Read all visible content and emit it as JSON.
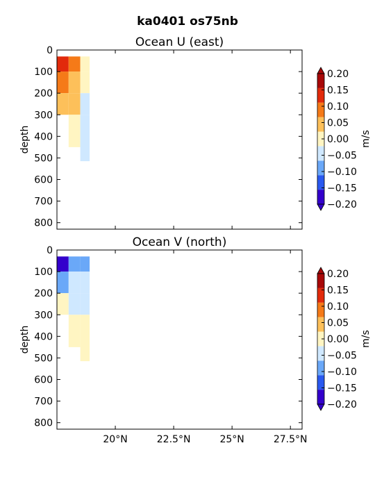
{
  "figure_title": "ka0401 os75nb",
  "chart_data": [
    {
      "type": "heatmap",
      "title": "Ocean U (east)",
      "ylabel": "depth",
      "y_ticks": [
        0,
        100,
        200,
        300,
        400,
        500,
        600,
        700,
        800
      ],
      "y_tick_labels": [
        "0",
        "100",
        "200",
        "300",
        "400",
        "500",
        "600",
        "700",
        "800"
      ],
      "ylim": [
        830,
        0
      ],
      "xlim": [
        17.5,
        28.0
      ],
      "x_ticks": [
        20,
        22.5,
        25,
        27.5
      ],
      "x_tick_labels": [],
      "colorbar": {
        "label": "m/s",
        "levels": [
          -0.2,
          -0.15,
          -0.1,
          -0.05,
          0.0,
          0.05,
          0.1,
          0.15,
          0.2
        ],
        "tick_labels": [
          "0.20",
          "0.15",
          "0.10",
          "0.05",
          "0.00",
          "−0.05",
          "−0.10",
          "−0.15",
          "−0.20"
        ],
        "colors": [
          "#3300cc",
          "#2a59f0",
          "#6aa8f8",
          "#cfe8ff",
          "#fff5c2",
          "#fdc05a",
          "#f57a18",
          "#e22a0b",
          "#a80808"
        ],
        "extend": "both"
      },
      "data_extent": {
        "lat_range": [
          17.5,
          18.9
        ],
        "depth_range": [
          30,
          515
        ]
      },
      "cells": [
        {
          "lat": [
            17.5,
            18.0
          ],
          "depth": [
            30,
            100
          ],
          "value": 0.18
        },
        {
          "lat": [
            18.0,
            18.5
          ],
          "depth": [
            30,
            100
          ],
          "value": 0.13
        },
        {
          "lat": [
            18.5,
            18.9
          ],
          "depth": [
            30,
            100
          ],
          "value": 0.03
        },
        {
          "lat": [
            17.5,
            18.0
          ],
          "depth": [
            100,
            200
          ],
          "value": 0.12
        },
        {
          "lat": [
            18.0,
            18.5
          ],
          "depth": [
            100,
            200
          ],
          "value": 0.08
        },
        {
          "lat": [
            18.5,
            18.9
          ],
          "depth": [
            100,
            200
          ],
          "value": 0.02
        },
        {
          "lat": [
            17.5,
            18.0
          ],
          "depth": [
            200,
            300
          ],
          "value": 0.07
        },
        {
          "lat": [
            18.0,
            18.5
          ],
          "depth": [
            200,
            300
          ],
          "value": 0.06
        },
        {
          "lat": [
            18.5,
            18.9
          ],
          "depth": [
            200,
            300
          ],
          "value": -0.02
        },
        {
          "lat": [
            18.0,
            18.5
          ],
          "depth": [
            300,
            450
          ],
          "value": 0.02
        },
        {
          "lat": [
            18.5,
            18.9
          ],
          "depth": [
            300,
            515
          ],
          "value": -0.03
        }
      ]
    },
    {
      "type": "heatmap",
      "title": "Ocean V (north)",
      "ylabel": "depth",
      "y_ticks": [
        0,
        100,
        200,
        300,
        400,
        500,
        600,
        700,
        800
      ],
      "y_tick_labels": [
        "0",
        "100",
        "200",
        "300",
        "400",
        "500",
        "600",
        "700",
        "800"
      ],
      "ylim": [
        830,
        0
      ],
      "xlim": [
        17.5,
        28.0
      ],
      "x_ticks": [
        20,
        22.5,
        25,
        27.5
      ],
      "x_tick_labels": [
        "20°N",
        "22.5°N",
        "25°N",
        "27.5°N"
      ],
      "colorbar": {
        "label": "m/s",
        "levels": [
          -0.2,
          -0.15,
          -0.1,
          -0.05,
          0.0,
          0.05,
          0.1,
          0.15,
          0.2
        ],
        "tick_labels": [
          "0.20",
          "0.15",
          "0.10",
          "0.05",
          "0.00",
          "−0.05",
          "−0.10",
          "−0.15",
          "−0.20"
        ],
        "colors": [
          "#3300cc",
          "#2a59f0",
          "#6aa8f8",
          "#cfe8ff",
          "#fff5c2",
          "#fdc05a",
          "#f57a18",
          "#e22a0b",
          "#a80808"
        ],
        "extend": "both"
      },
      "data_extent": {
        "lat_range": [
          17.5,
          18.9
        ],
        "depth_range": [
          30,
          515
        ]
      },
      "cells": [
        {
          "lat": [
            17.5,
            18.0
          ],
          "depth": [
            30,
            100
          ],
          "value": -0.19
        },
        {
          "lat": [
            18.0,
            18.5
          ],
          "depth": [
            30,
            100
          ],
          "value": -0.08
        },
        {
          "lat": [
            18.5,
            18.9
          ],
          "depth": [
            30,
            100
          ],
          "value": -0.07
        },
        {
          "lat": [
            17.5,
            18.0
          ],
          "depth": [
            100,
            200
          ],
          "value": -0.08
        },
        {
          "lat": [
            18.0,
            18.5
          ],
          "depth": [
            100,
            200
          ],
          "value": -0.03
        },
        {
          "lat": [
            18.5,
            18.9
          ],
          "depth": [
            100,
            200
          ],
          "value": -0.04
        },
        {
          "lat": [
            17.5,
            18.0
          ],
          "depth": [
            200,
            300
          ],
          "value": 0.02
        },
        {
          "lat": [
            18.0,
            18.5
          ],
          "depth": [
            200,
            300
          ],
          "value": -0.02
        },
        {
          "lat": [
            18.5,
            18.9
          ],
          "depth": [
            200,
            300
          ],
          "value": -0.03
        },
        {
          "lat": [
            18.0,
            18.5
          ],
          "depth": [
            300,
            450
          ],
          "value": 0.02
        },
        {
          "lat": [
            18.5,
            18.9
          ],
          "depth": [
            300,
            515
          ],
          "value": 0.03
        }
      ]
    }
  ]
}
